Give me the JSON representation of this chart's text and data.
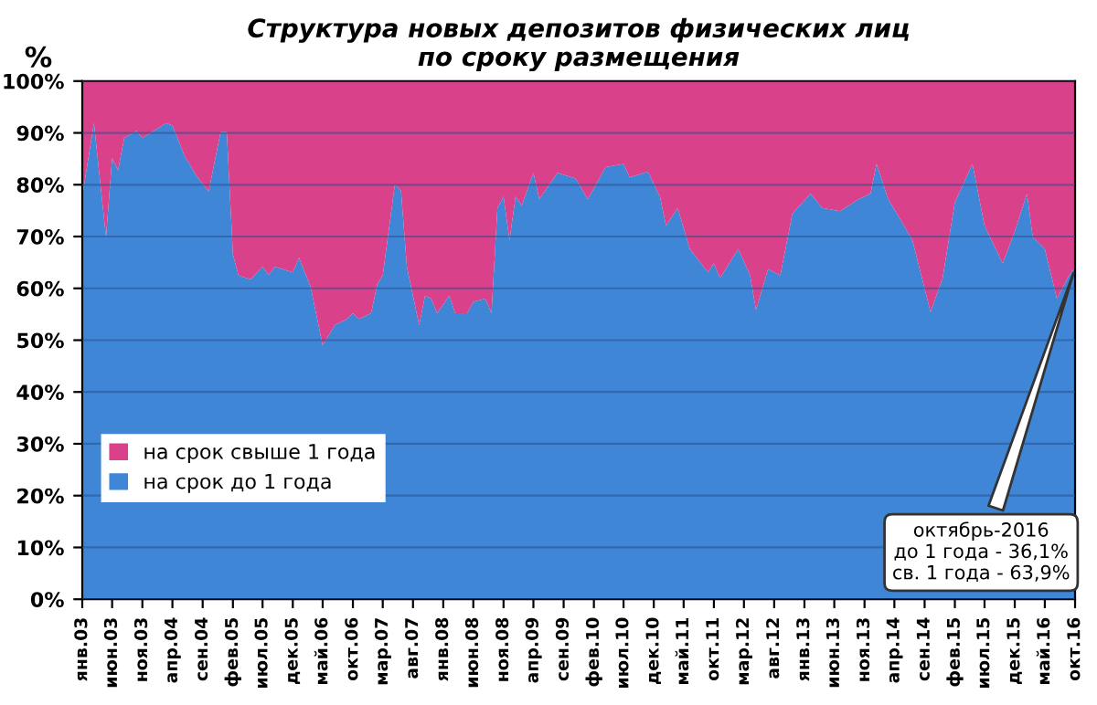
{
  "chart_data": {
    "type": "area",
    "stacked": true,
    "title": "Структура новых депозитов физических лиц\nпо сроку размещения",
    "ylabel": "%",
    "x": [
      "2003-01",
      "2003-03",
      "2003-05",
      "2003-06",
      "2003-07",
      "2003-08",
      "2003-10",
      "2003-11",
      "2004-03",
      "2004-04",
      "2004-06",
      "2004-08",
      "2004-10",
      "2004-12",
      "2005-01",
      "2005-02",
      "2005-03",
      "2005-05",
      "2005-07",
      "2005-08",
      "2005-09",
      "2005-12",
      "2006-01",
      "2006-03",
      "2006-05",
      "2006-07",
      "2006-09",
      "2006-10",
      "2006-11",
      "2007-01",
      "2007-02",
      "2007-03",
      "2007-05",
      "2007-06",
      "2007-07",
      "2007-09",
      "2007-10",
      "2007-11",
      "2007-12",
      "2008-02",
      "2008-03",
      "2008-05",
      "2008-06",
      "2008-08",
      "2008-09",
      "2008-10",
      "2008-11",
      "2008-12",
      "2009-01",
      "2009-02",
      "2009-04",
      "2009-05",
      "2009-08",
      "2009-11",
      "2010-01",
      "2010-04",
      "2010-07",
      "2010-08",
      "2010-11",
      "2011-01",
      "2011-02",
      "2011-04",
      "2011-06",
      "2011-09",
      "2011-10",
      "2011-11",
      "2012-02",
      "2012-04",
      "2012-05",
      "2012-07",
      "2012-09",
      "2012-11",
      "2013-02",
      "2013-04",
      "2013-07",
      "2013-08",
      "2013-10",
      "2013-12",
      "2014-01",
      "2014-03",
      "2014-05",
      "2014-07",
      "2014-10",
      "2014-12",
      "2015-02",
      "2015-05",
      "2015-07",
      "2015-10",
      "2015-12",
      "2016-02",
      "2016-03",
      "2016-05",
      "2016-07",
      "2016-09",
      "2016-10"
    ],
    "series": [
      {
        "name": "на срок до 1 года",
        "color": "#3f87d6",
        "values": [
          77.7,
          91.9,
          69.9,
          85.1,
          82.8,
          89.0,
          90.4,
          89.0,
          91.9,
          91.4,
          85.6,
          81.7,
          78.7,
          90.2,
          90.2,
          66.5,
          62.5,
          61.7,
          64.2,
          62.6,
          64.2,
          63.1,
          65.9,
          60.3,
          49.0,
          52.9,
          54.1,
          55.2,
          54.1,
          55.2,
          60.8,
          62.5,
          80.0,
          78.9,
          64.2,
          52.9,
          58.6,
          58.0,
          55.2,
          58.6,
          55.2,
          55.2,
          57.4,
          58.0,
          55.2,
          75.5,
          77.7,
          69.3,
          77.7,
          76.0,
          82.3,
          77.2,
          82.3,
          81.2,
          77.2,
          83.4,
          84.0,
          81.4,
          82.5,
          77.7,
          72.1,
          75.5,
          67.6,
          63.1,
          64.8,
          62.0,
          67.6,
          62.5,
          55.8,
          63.7,
          62.5,
          74.4,
          78.3,
          75.5,
          74.9,
          75.7,
          77.2,
          78.3,
          84.0,
          77.2,
          73.3,
          69.3,
          55.4,
          62.0,
          76.6,
          84.0,
          72.1,
          64.8,
          71.0,
          78.3,
          69.9,
          67.6,
          58.0,
          62.5,
          63.9
        ]
      },
      {
        "name": "на срок свыше 1 года",
        "color": "#d9418a",
        "values": [
          22.3,
          8.1,
          30.1,
          14.9,
          17.2,
          11.0,
          9.6,
          11.0,
          8.1,
          8.6,
          14.4,
          18.3,
          21.3,
          9.8,
          9.8,
          33.5,
          37.5,
          38.3,
          35.8,
          37.4,
          35.8,
          36.9,
          34.1,
          39.7,
          51.0,
          47.1,
          45.9,
          44.8,
          45.9,
          44.8,
          39.2,
          37.5,
          20.0,
          21.1,
          35.8,
          47.1,
          41.4,
          42.0,
          44.8,
          41.4,
          44.8,
          44.8,
          42.6,
          42.0,
          44.8,
          24.5,
          22.3,
          30.7,
          22.3,
          24.0,
          17.7,
          22.8,
          17.7,
          18.8,
          22.8,
          16.6,
          16.0,
          18.6,
          17.5,
          22.3,
          27.9,
          24.5,
          32.4,
          36.9,
          35.2,
          38.0,
          32.4,
          37.5,
          44.2,
          36.3,
          37.5,
          25.6,
          21.7,
          24.5,
          25.1,
          24.3,
          22.8,
          21.7,
          16.0,
          22.8,
          26.7,
          30.7,
          44.6,
          38.0,
          23.4,
          16.0,
          27.9,
          35.2,
          29.0,
          21.7,
          30.1,
          32.4,
          42.0,
          37.5,
          36.1
        ]
      }
    ],
    "xlim": [
      "2003-01",
      "2016-10"
    ],
    "xticks": [
      {
        "value": "2003-01",
        "label": "янв.03"
      },
      {
        "value": "2003-06",
        "label": "июн.03"
      },
      {
        "value": "2003-11",
        "label": "ноя.03"
      },
      {
        "value": "2004-04",
        "label": "апр.04"
      },
      {
        "value": "2004-09",
        "label": "сен.04"
      },
      {
        "value": "2005-02",
        "label": "фев.05"
      },
      {
        "value": "2005-07",
        "label": "июл.05"
      },
      {
        "value": "2005-12",
        "label": "дек.05"
      },
      {
        "value": "2006-05",
        "label": "май.06"
      },
      {
        "value": "2006-10",
        "label": "окт.06"
      },
      {
        "value": "2007-03",
        "label": "мар.07"
      },
      {
        "value": "2007-08",
        "label": "авг.07"
      },
      {
        "value": "2008-01",
        "label": "янв.08"
      },
      {
        "value": "2008-06",
        "label": "июн.08"
      },
      {
        "value": "2008-11",
        "label": "ноя.08"
      },
      {
        "value": "2009-04",
        "label": "апр.09"
      },
      {
        "value": "2009-09",
        "label": "сен.09"
      },
      {
        "value": "2010-02",
        "label": "фев.10"
      },
      {
        "value": "2010-07",
        "label": "июл.10"
      },
      {
        "value": "2010-12",
        "label": "дек.10"
      },
      {
        "value": "2011-05",
        "label": "май.11"
      },
      {
        "value": "2011-10",
        "label": "окт.11"
      },
      {
        "value": "2012-03",
        "label": "мар.12"
      },
      {
        "value": "2012-08",
        "label": "авг.12"
      },
      {
        "value": "2013-01",
        "label": "янв.13"
      },
      {
        "value": "2013-06",
        "label": "июн.13"
      },
      {
        "value": "2013-11",
        "label": "ноя.13"
      },
      {
        "value": "2014-04",
        "label": "апр.14"
      },
      {
        "value": "2014-09",
        "label": "сен.14"
      },
      {
        "value": "2015-02",
        "label": "фев.15"
      },
      {
        "value": "2015-07",
        "label": "июл.15"
      },
      {
        "value": "2015-12",
        "label": "дек.15"
      },
      {
        "value": "2016-05",
        "label": "май.16"
      },
      {
        "value": "2016-10",
        "label": "окт.16"
      }
    ],
    "ylim": [
      0,
      100
    ],
    "yticks": [
      {
        "value": 0,
        "label": "0%"
      },
      {
        "value": 10,
        "label": "10%"
      },
      {
        "value": 20,
        "label": "20%"
      },
      {
        "value": 30,
        "label": "30%"
      },
      {
        "value": 40,
        "label": "40%"
      },
      {
        "value": 50,
        "label": "50%"
      },
      {
        "value": 60,
        "label": "60%"
      },
      {
        "value": 70,
        "label": "70%"
      },
      {
        "value": 80,
        "label": "80%"
      },
      {
        "value": 90,
        "label": "90%"
      },
      {
        "value": 100,
        "label": "100%"
      }
    ],
    "grid": "y",
    "legend": "bottom left",
    "annotations": [
      {
        "text": "октябрь-2016\nдо 1 года - 36,1%\nсв. 1 года - 63,9%",
        "x": "2016-10",
        "y": 63.9
      }
    ]
  }
}
